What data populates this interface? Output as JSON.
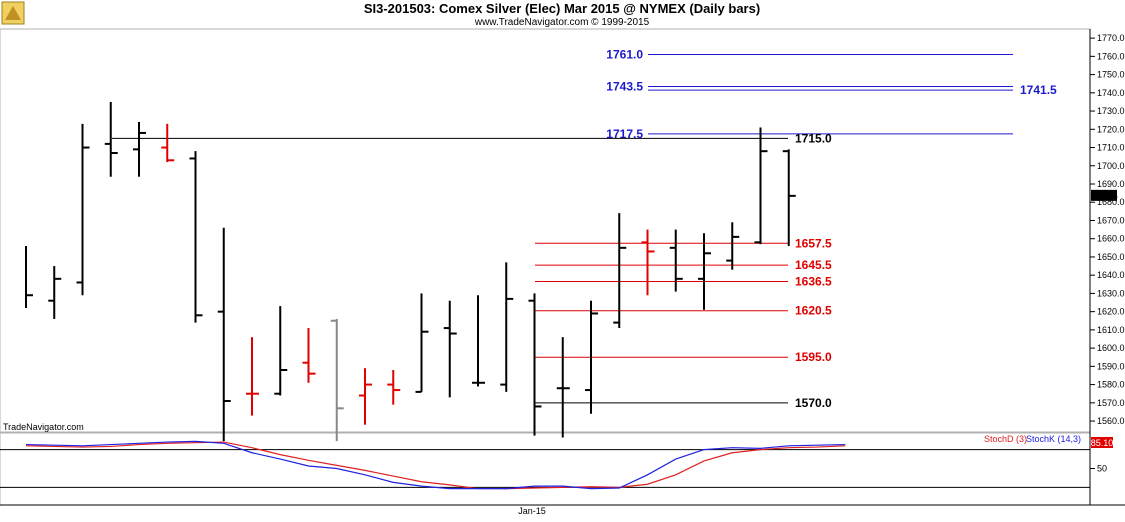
{
  "header": {
    "title": "SI3-201503:  Comex Silver (Elec) Mar 2015 @ NYMEX  (Daily bars)",
    "subtitle": "www.TradeNavigator.com © 1999-2015"
  },
  "watermark": "TradeNavigator.com",
  "chart_data": {
    "type": "ohlc",
    "ylim": [
      1554,
      1775
    ],
    "y_ticks": [
      1560,
      1570,
      1580,
      1590,
      1600,
      1610,
      1620,
      1630,
      1640,
      1650,
      1660,
      1670,
      1680,
      1690,
      1700,
      1710,
      1720,
      1730,
      1740,
      1750,
      1760,
      1770
    ],
    "x_tick_labels": [
      "Jan-15"
    ],
    "last_price": "1683.5",
    "bars": [
      {
        "o": null,
        "h": 1656,
        "l": 1622,
        "c": 1629,
        "color": "#000000"
      },
      {
        "o": 1626,
        "h": 1645,
        "l": 1616,
        "c": 1638,
        "color": "#000000"
      },
      {
        "o": 1636,
        "h": 1723,
        "l": 1629,
        "c": 1710,
        "color": "#000000"
      },
      {
        "o": 1712,
        "h": 1735,
        "l": 1694,
        "c": 1707,
        "color": "#000000"
      },
      {
        "o": 1709,
        "h": 1724,
        "l": 1694,
        "c": 1718,
        "color": "#000000"
      },
      {
        "o": 1710,
        "h": 1723,
        "l": 1702,
        "c": 1703,
        "color": "#e00000"
      },
      {
        "o": 1704,
        "h": 1708,
        "l": 1614,
        "c": 1618,
        "color": "#000000"
      },
      {
        "o": 1620,
        "h": 1666,
        "l": 1549,
        "c": 1571,
        "color": "#000000"
      },
      {
        "o": 1575,
        "h": 1606,
        "l": 1563,
        "c": 1575,
        "color": "#e00000"
      },
      {
        "o": 1575,
        "h": 1623,
        "l": 1574,
        "c": 1588,
        "color": "#000000"
      },
      {
        "o": 1592,
        "h": 1611,
        "l": 1581,
        "c": 1586,
        "color": "#e00000"
      },
      {
        "o": 1615,
        "h": 1616,
        "l": 1549,
        "c": 1567,
        "color": "#888888"
      },
      {
        "o": 1574,
        "h": 1589,
        "l": 1558,
        "c": 1580,
        "color": "#e00000"
      },
      {
        "o": 1580,
        "h": 1588,
        "l": 1569,
        "c": 1577,
        "color": "#e00000"
      },
      {
        "o": 1576,
        "h": 1630,
        "l": 1576,
        "c": 1609,
        "color": "#000000"
      },
      {
        "o": 1611,
        "h": 1626,
        "l": 1573,
        "c": 1608,
        "color": "#000000"
      },
      {
        "o": 1581,
        "h": 1629,
        "l": 1579,
        "c": 1581,
        "color": "#000000"
      },
      {
        "o": 1580,
        "h": 1647,
        "l": 1576,
        "c": 1627,
        "color": "#000000"
      },
      {
        "o": 1626,
        "h": 1630,
        "l": 1552,
        "c": 1568,
        "color": "#000000"
      },
      {
        "o": 1578,
        "h": 1606,
        "l": 1551,
        "c": 1578,
        "color": "#000000"
      },
      {
        "o": 1577,
        "h": 1626,
        "l": 1564,
        "c": 1619,
        "color": "#000000"
      },
      {
        "o": 1614,
        "h": 1674,
        "l": 1611,
        "c": 1655,
        "color": "#000000"
      },
      {
        "o": 1658,
        "h": 1665,
        "l": 1629,
        "c": 1653,
        "color": "#e00000"
      },
      {
        "o": 1655,
        "h": 1665,
        "l": 1631,
        "c": 1638,
        "color": "#000000"
      },
      {
        "o": 1638,
        "h": 1663,
        "l": 1621,
        "c": 1652,
        "color": "#000000"
      },
      {
        "o": 1648,
        "h": 1669,
        "l": 1643,
        "c": 1661,
        "color": "#000000"
      },
      {
        "o": 1658,
        "h": 1721,
        "l": 1657,
        "c": 1708,
        "color": "#000000"
      },
      {
        "o": 1708,
        "h": 1709,
        "l": 1656,
        "c": 1683.5,
        "color": "#000000"
      }
    ],
    "levels": [
      {
        "value": 1761.0,
        "label": "1761.0",
        "label_side": "left",
        "color": "#1a1acd",
        "lines": [
          1761.0
        ]
      },
      {
        "value": 1743.5,
        "label": "1743.5",
        "label_side": "left",
        "color": "#1a1acd",
        "lines": [
          1743.5,
          1741.5
        ]
      },
      {
        "value": 1741.5,
        "label": "1741.5",
        "label_side": "right",
        "color": "#1a1acd",
        "lines": []
      },
      {
        "value": 1717.5,
        "label": "1717.5",
        "label_side": "left",
        "color": "#1a1acd",
        "lines": [
          1717.5
        ]
      },
      {
        "value": 1715.0,
        "label": "1715.0",
        "label_side": "right",
        "color": "#000000",
        "lines": [
          1715.0
        ]
      },
      {
        "value": 1657.5,
        "label": "1657.5",
        "label_side": "right",
        "color": "#e00000",
        "lines": [
          1657.5
        ]
      },
      {
        "value": 1645.5,
        "label": "1645.5",
        "label_side": "right",
        "color": "#e00000",
        "lines": [
          1645.5
        ]
      },
      {
        "value": 1636.5,
        "label": "1636.5",
        "label_side": "right",
        "color": "#e00000",
        "lines": [
          1636.5
        ]
      },
      {
        "value": 1620.5,
        "label": "1620.5",
        "label_side": "right",
        "color": "#e00000",
        "lines": [
          1620.5
        ]
      },
      {
        "value": 1595.0,
        "label": "1595.0",
        "label_side": "right",
        "color": "#e00000",
        "lines": [
          1595.0
        ]
      },
      {
        "value": 1570.0,
        "label": "1570.0",
        "label_side": "right",
        "color": "#000000",
        "lines": [
          1570.0
        ]
      }
    ],
    "indicator": {
      "ylim": [
        0,
        100
      ],
      "y_ticks": [
        50
      ],
      "stoch_d_label": "StochD (3)",
      "stoch_k_label": "StochK (14,3)",
      "readout": "85.10",
      "colors": {
        "k": "#2020e0",
        "d": "#e02020"
      },
      "stoch_k": [
        88,
        87,
        86,
        88,
        90,
        92,
        93,
        90,
        75,
        65,
        54,
        50,
        40,
        28,
        22,
        18,
        18,
        18,
        22,
        22,
        18,
        19,
        40,
        65,
        80,
        83,
        82,
        86,
        87,
        88
      ],
      "stoch_d": [
        86,
        85,
        84,
        85,
        88,
        90,
        91,
        92,
        83,
        72,
        63,
        55,
        47,
        38,
        29,
        24,
        18,
        18,
        19,
        20,
        21,
        20,
        25,
        40,
        62,
        75,
        80,
        83,
        84,
        86
      ]
    }
  }
}
